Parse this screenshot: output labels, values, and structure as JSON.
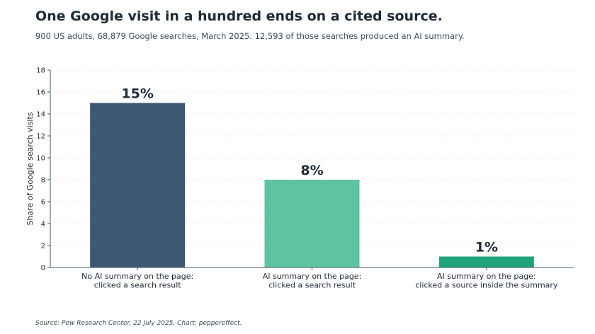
{
  "header": {
    "title": "One Google visit in a hundred ends on a cited source.",
    "subtitle": "900 US adults, 68,879 Google searches, March 2025. 12,593 of those searches produced an AI summary."
  },
  "footer": {
    "source": "Source: Pew Research Center, 22 July 2025. Chart: peppereffect."
  },
  "chart_data": {
    "type": "bar",
    "categories": [
      [
        "No AI summary on the page:",
        "clicked a search result"
      ],
      [
        "AI summary on the page:",
        "clicked a search result"
      ],
      [
        "AI summary on the page:",
        "clicked a source inside the summary"
      ]
    ],
    "values": [
      15,
      8,
      1
    ],
    "data_labels": [
      "15%",
      "8%",
      "1%"
    ],
    "colors": [
      "#3e5873",
      "#5ec4a0",
      "#1fa37a"
    ],
    "ylabel": "Share of Google search visits",
    "ylim": [
      0,
      18
    ],
    "yticks": [
      0,
      2,
      4,
      6,
      8,
      10,
      12,
      14,
      16,
      18
    ],
    "grid": true,
    "legend": "none"
  }
}
